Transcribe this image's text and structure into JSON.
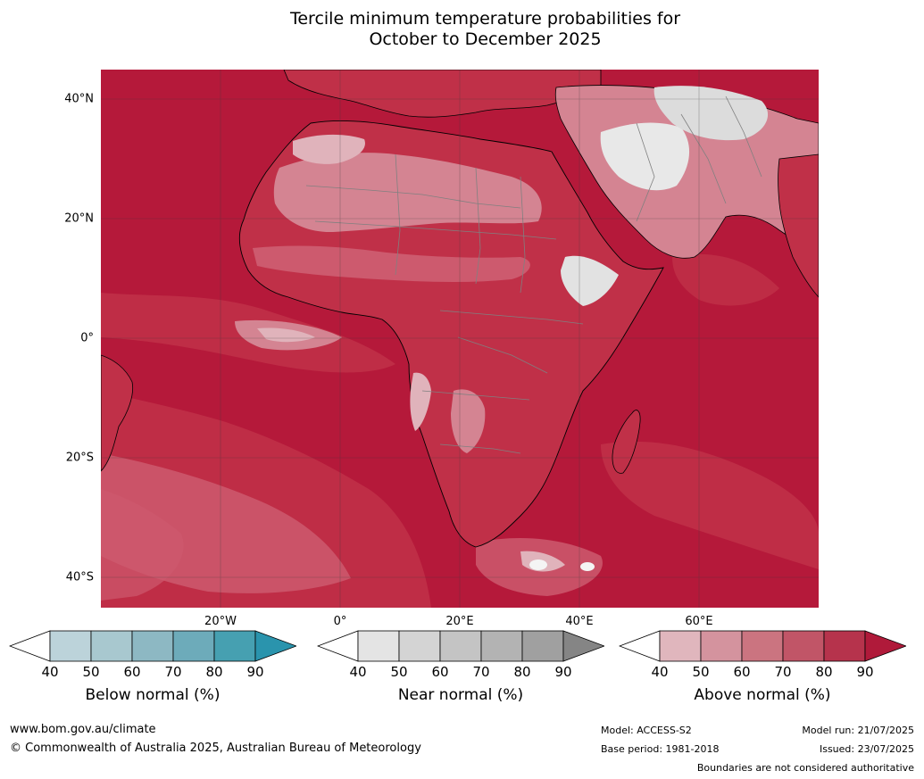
{
  "title": {
    "line1": "Tercile minimum temperature probabilities for",
    "line2": "October to December 2025"
  },
  "map": {
    "region": "Africa",
    "lat_labels": [
      "40°N",
      "20°N",
      "0°",
      "20°S",
      "40°S"
    ],
    "lon_labels": [
      "20°W",
      "0°",
      "20°E",
      "40°E",
      "60°E"
    ],
    "colors": {
      "ocean_dominant": "#b5193a",
      "level_80": "#c03048",
      "level_70": "#cd5a6e",
      "level_60": "#d48492",
      "level_50": "#e0b3bb",
      "near_normal_light": "#e2e2e2",
      "coastline": "#000000",
      "borders": "#808080"
    }
  },
  "legends": [
    {
      "label": "Below normal (%)",
      "ticks": [
        "40",
        "50",
        "60",
        "70",
        "80",
        "90"
      ],
      "colors": [
        "#ffffff",
        "#bcd3da",
        "#a8c8cf",
        "#8db8c3",
        "#6dabba",
        "#46a0b1",
        "#2a94ad"
      ]
    },
    {
      "label": "Near normal (%)",
      "ticks": [
        "40",
        "50",
        "60",
        "70",
        "80",
        "90"
      ],
      "colors": [
        "#ffffff",
        "#e4e4e4",
        "#d4d4d4",
        "#c4c4c4",
        "#b3b3b3",
        "#a0a0a0",
        "#858585"
      ]
    },
    {
      "label": "Above normal (%)",
      "ticks": [
        "40",
        "50",
        "60",
        "70",
        "80",
        "90"
      ],
      "colors": [
        "#ffffff",
        "#e0b6bd",
        "#d4939e",
        "#cb7480",
        "#c15567",
        "#b6334c",
        "#b01a3a"
      ]
    }
  ],
  "footer": {
    "website": "www.bom.gov.au/climate",
    "copyright": "© Commonwealth of Australia 2025, Australian Bureau of Meteorology",
    "model": "Model: ACCESS-S2",
    "base_period": "Base period: 1981-2018",
    "model_run": "Model run: 21/07/2025",
    "issued": "Issued: 23/07/2025",
    "disclaimer": "Boundaries are not considered authoritative"
  }
}
